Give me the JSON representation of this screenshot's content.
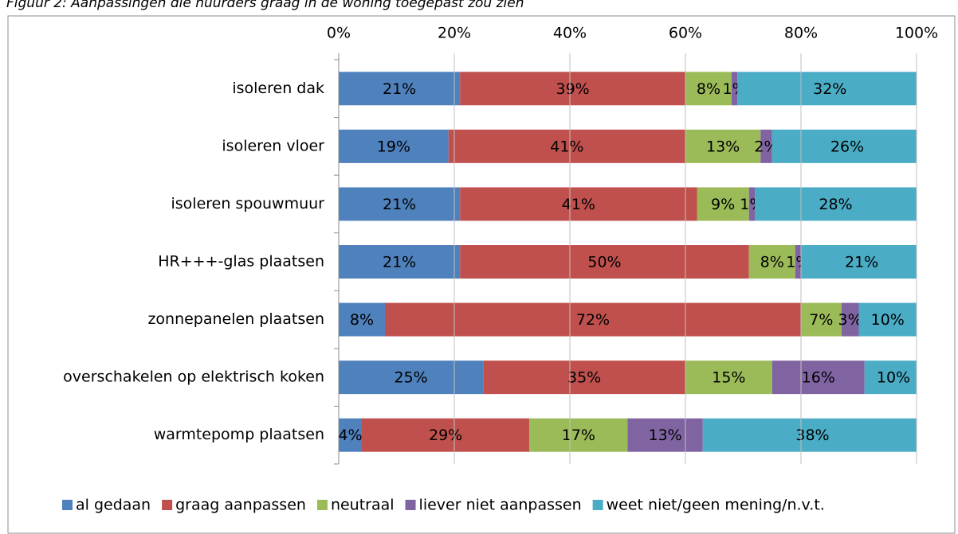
{
  "chart_data": {
    "type": "stacked-bar-horizontal",
    "title": "Figuur 2: Aanpassingen die huurders graag in de woning toegepast zou zien",
    "categories": [
      "isoleren dak",
      "isoleren vloer",
      "isoleren spouwmuur",
      "HR+++-glas plaatsen",
      "zonnepanelen plaatsen",
      "overschakelen op elektrisch koken",
      "warmtepomp plaatsen"
    ],
    "series": [
      {
        "name": "al gedaan",
        "color": "#4f81bd",
        "values": [
          21,
          19,
          21,
          21,
          8,
          25,
          4
        ],
        "value_labels": [
          "21%",
          "19%",
          "21%",
          "21%",
          "8%",
          "25%",
          "4%"
        ]
      },
      {
        "name": "graag aanpassen",
        "color": "#c0504d",
        "values": [
          39,
          41,
          41,
          50,
          72,
          35,
          29
        ],
        "value_labels": [
          "39%",
          "41%",
          "41%",
          "50%",
          "72%",
          "35%",
          "29%"
        ]
      },
      {
        "name": "neutraal",
        "color": "#9bbb59",
        "values": [
          8,
          13,
          9,
          8,
          7,
          15,
          17
        ],
        "value_labels": [
          "8%",
          "13%",
          "9%",
          "8%",
          "7%",
          "15%",
          "17%"
        ]
      },
      {
        "name": "liever niet aanpassen",
        "color": "#8064a2",
        "values": [
          1,
          2,
          1,
          1,
          3,
          16,
          13
        ],
        "value_labels": [
          "1%",
          "2%",
          "1%",
          "1%",
          "3%",
          "16%",
          "13%"
        ]
      },
      {
        "name": "weet niet/geen mening/n.v.t.",
        "color": "#4bacc6",
        "values": [
          32,
          26,
          28,
          21,
          10,
          10,
          38
        ],
        "value_labels": [
          "32%",
          "26%",
          "28%",
          "21%",
          "10%",
          "10%",
          "38%"
        ]
      }
    ],
    "xlim": [
      0,
      100
    ],
    "xticks": [
      {
        "value": 0,
        "label": "0%"
      },
      {
        "value": 20,
        "label": "20%"
      },
      {
        "value": 40,
        "label": "40%"
      },
      {
        "value": 60,
        "label": "60%"
      },
      {
        "value": 80,
        "label": "80%"
      },
      {
        "value": 100,
        "label": "100%"
      }
    ],
    "grid": true,
    "legend": "bottom"
  }
}
